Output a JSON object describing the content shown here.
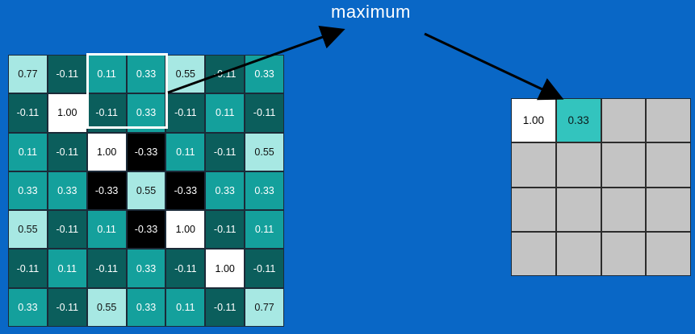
{
  "title": "maximum",
  "colors": {
    "background": "#0967c6",
    "high": "#ffffff",
    "light_teal": "#a7e8e3",
    "teal": "#14a09c",
    "dark_teal": "#0b5e5c",
    "black": "#000000",
    "empty": "#c4c4c4",
    "arrow": "#000000"
  },
  "input_grid": {
    "rows": [
      [
        "0.77",
        "-0.11",
        "0.11",
        "0.33",
        "0.55",
        "-0.11",
        "0.33"
      ],
      [
        "-0.11",
        "1.00",
        "-0.11",
        "0.33",
        "-0.11",
        "0.11",
        "-0.11"
      ],
      [
        "0.11",
        "-0.11",
        "1.00",
        "-0.33",
        "0.11",
        "-0.11",
        "0.55"
      ],
      [
        "0.33",
        "0.33",
        "-0.33",
        "0.55",
        "-0.33",
        "0.33",
        "0.33"
      ],
      [
        "0.55",
        "-0.11",
        "0.11",
        "-0.33",
        "1.00",
        "-0.11",
        "0.11"
      ],
      [
        "-0.11",
        "0.11",
        "-0.11",
        "0.33",
        "-0.11",
        "1.00",
        "-0.11"
      ],
      [
        "0.33",
        "-0.11",
        "0.55",
        "0.33",
        "0.11",
        "-0.11",
        "0.77"
      ]
    ],
    "levels": [
      [
        "mid",
        "dark",
        "teal",
        "teal",
        "mid",
        "dark",
        "teal"
      ],
      [
        "dark",
        "hi",
        "dark",
        "teal",
        "dark",
        "teal",
        "dark"
      ],
      [
        "teal",
        "dark",
        "hi",
        "neg",
        "teal",
        "dark",
        "mid"
      ],
      [
        "teal",
        "teal",
        "neg",
        "mid",
        "neg",
        "teal",
        "teal"
      ],
      [
        "mid",
        "dark",
        "teal",
        "neg",
        "hi",
        "dark",
        "teal"
      ],
      [
        "dark",
        "teal",
        "dark",
        "teal",
        "dark",
        "hi",
        "dark"
      ],
      [
        "teal",
        "dark",
        "mid",
        "teal",
        "teal",
        "dark",
        "mid"
      ]
    ]
  },
  "pool_window": {
    "rows": [
      0,
      1
    ],
    "cols": [
      2,
      3
    ]
  },
  "output_grid": {
    "rows": [
      [
        "1.00",
        "0.33",
        "",
        ""
      ],
      [
        "",
        "",
        "",
        ""
      ],
      [
        "",
        "",
        "",
        ""
      ],
      [
        "",
        "",
        "",
        ""
      ]
    ],
    "levels": [
      [
        "out-hi",
        "out-teal",
        "empty",
        "empty"
      ],
      [
        "empty",
        "empty",
        "empty",
        "empty"
      ],
      [
        "empty",
        "empty",
        "empty",
        "empty"
      ],
      [
        "empty",
        "empty",
        "empty",
        "empty"
      ]
    ]
  }
}
